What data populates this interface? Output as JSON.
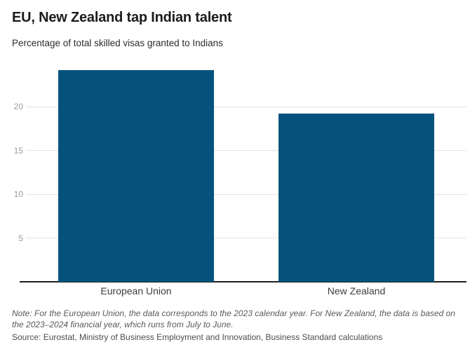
{
  "page": {
    "title": "EU, New Zealand tap Indian talent",
    "subtitle": "Percentage of total skilled visas granted to Indians",
    "note": "Note: For the European Union, the data corresponds to the 2023 calendar year. For New Zealand, the data is based on the 2023–2024 financial year, which runs from July to June.",
    "source": "Source: Eurostat, Ministry of Business Employment and Innovation, Business Standard calculations"
  },
  "colors": {
    "bar": "#05537d",
    "grid": "#e3e3e3",
    "axis": "#1f1f1f",
    "tick_text": "#9b9b9b"
  },
  "chart_data": {
    "type": "bar",
    "title": "EU, New Zealand tap Indian talent",
    "subtitle": "Percentage of total skilled visas granted to Indians",
    "categories": [
      "European Union",
      "New Zealand"
    ],
    "values": [
      24.2,
      19.2
    ],
    "xlabel": "",
    "ylabel": "Percentage of total skilled visas granted to Indians",
    "ylim": [
      0,
      25
    ],
    "yticks": [
      5,
      10,
      15,
      20
    ],
    "grid": true,
    "legend": false,
    "note": "Note: For the European Union, the data corresponds to the 2023 calendar year. For New Zealand, the data is based on the 2023–2024 financial year, which runs from July to June.",
    "source": "Source: Eurostat, Ministry of Business Employment and Innovation, Business Standard calculations"
  }
}
